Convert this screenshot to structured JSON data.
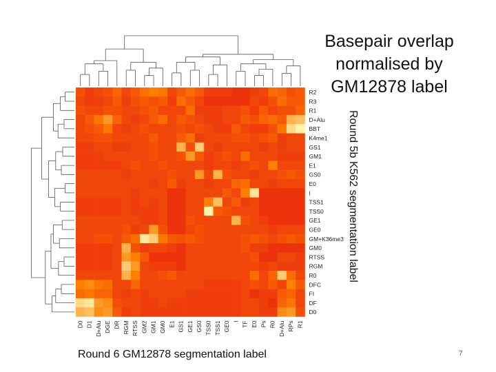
{
  "slide": {
    "title_lines": [
      "Basepair overlap",
      "normalised by",
      "GM12878 label"
    ],
    "page_number": "7"
  },
  "chart_data": {
    "type": "heatmap",
    "title": "Basepair overlap normalised by GM12878 label",
    "xlabel": "Round 6 GM12878 segmentation label",
    "ylabel": "Round 5b K562 segmentation label",
    "columns": [
      "D0",
      "D1",
      "D+Alu",
      "DGE",
      "DR",
      "RGM",
      "RTSS",
      "GM2",
      "GM1",
      "GM0",
      "E1",
      "GS1",
      "GE1",
      "GS0",
      "TSS0",
      "TSS1",
      "GE0",
      "I",
      "TF",
      "E0",
      "Ps",
      "R0",
      "D+Alu",
      "RPs",
      "R1"
    ],
    "rows": [
      "R2",
      "R3",
      "R1",
      "D+Alu",
      "BBT",
      "K4me1",
      "GS1",
      "GM1",
      "E1",
      "GS0",
      "E0",
      "I",
      "TSS1",
      "TSS0",
      "GE1",
      "GE0",
      "GM+K36me3",
      "GM0",
      "RTSS",
      "RGM",
      "R0",
      "DFC",
      "FI",
      "DF",
      "D0"
    ],
    "value_scale": "0 = red (low overlap), 1 = pale yellow (high overlap)",
    "values": [
      [
        0.25,
        0.15,
        0.2,
        0.25,
        0.35,
        0.2,
        0.3,
        0.4,
        0.5,
        0.45,
        0.2,
        0.3,
        0.4,
        0.3,
        0.15,
        0.15,
        0.15,
        0.1,
        0.1,
        0.15,
        0.2,
        0.4,
        0.35,
        0.25,
        0.3
      ],
      [
        0.2,
        0.15,
        0.15,
        0.2,
        0.3,
        0.15,
        0.25,
        0.3,
        0.25,
        0.3,
        0.15,
        0.4,
        0.3,
        0.2,
        0.1,
        0.1,
        0.1,
        0.1,
        0.1,
        0.2,
        0.15,
        0.25,
        0.4,
        0.3,
        0.3
      ],
      [
        0.25,
        0.2,
        0.2,
        0.25,
        0.25,
        0.2,
        0.2,
        0.25,
        0.3,
        0.2,
        0.2,
        0.2,
        0.4,
        0.15,
        0.15,
        0.15,
        0.2,
        0.2,
        0.25,
        0.15,
        0.3,
        0.2,
        0.25,
        0.25,
        0.35
      ],
      [
        0.2,
        0.3,
        0.45,
        0.6,
        0.35,
        0.2,
        0.15,
        0.2,
        0.3,
        0.4,
        0.2,
        0.3,
        0.25,
        0.2,
        0.15,
        0.15,
        0.2,
        0.2,
        0.3,
        0.25,
        0.35,
        0.4,
        0.3,
        0.7,
        0.75
      ],
      [
        0.2,
        0.25,
        0.3,
        0.45,
        0.2,
        0.15,
        0.2,
        0.25,
        0.2,
        0.2,
        0.2,
        0.25,
        0.2,
        0.25,
        0.2,
        0.15,
        0.15,
        0.3,
        0.2,
        0.15,
        0.15,
        0.25,
        0.45,
        0.85,
        0.95
      ],
      [
        0.2,
        0.2,
        0.25,
        0.25,
        0.2,
        0.2,
        0.2,
        0.2,
        0.3,
        0.2,
        0.2,
        0.3,
        0.4,
        0.15,
        0.2,
        0.2,
        0.2,
        0.25,
        0.25,
        0.2,
        0.25,
        0.3,
        0.15,
        0.2,
        0.2
      ],
      [
        0.15,
        0.15,
        0.2,
        0.2,
        0.15,
        0.15,
        0.2,
        0.2,
        0.25,
        0.2,
        0.2,
        0.7,
        0.25,
        0.8,
        0.2,
        0.15,
        0.2,
        0.2,
        0.2,
        0.2,
        0.15,
        0.2,
        0.15,
        0.2,
        0.2
      ],
      [
        0.15,
        0.15,
        0.15,
        0.2,
        0.2,
        0.2,
        0.2,
        0.2,
        0.25,
        0.2,
        0.2,
        0.25,
        0.6,
        0.3,
        0.15,
        0.2,
        0.25,
        0.2,
        0.4,
        0.2,
        0.2,
        0.2,
        0.15,
        0.15,
        0.15
      ],
      [
        0.15,
        0.15,
        0.15,
        0.15,
        0.15,
        0.2,
        0.25,
        0.2,
        0.2,
        0.25,
        0.2,
        0.2,
        0.2,
        0.2,
        0.15,
        0.2,
        0.2,
        0.15,
        0.2,
        0.25,
        0.2,
        0.5,
        0.2,
        0.2,
        0.2
      ],
      [
        0.2,
        0.2,
        0.2,
        0.2,
        0.2,
        0.15,
        0.2,
        0.2,
        0.2,
        0.2,
        0.25,
        0.2,
        0.2,
        0.6,
        0.2,
        0.7,
        0.25,
        0.2,
        0.2,
        0.15,
        0.2,
        0.2,
        0.25,
        0.3,
        0.25
      ],
      [
        0.2,
        0.2,
        0.2,
        0.2,
        0.2,
        0.2,
        0.2,
        0.2,
        0.15,
        0.2,
        0.3,
        0.15,
        0.2,
        0.2,
        0.15,
        0.2,
        0.2,
        0.35,
        0.4,
        0.2,
        0.2,
        0.15,
        0.2,
        0.2,
        0.2
      ],
      [
        0.2,
        0.2,
        0.2,
        0.2,
        0.2,
        0.2,
        0.15,
        0.2,
        0.2,
        0.2,
        0.1,
        0.1,
        0.2,
        0.2,
        0.2,
        0.2,
        0.3,
        0.2,
        0.5,
        0.9,
        0.1,
        0.1,
        0.1,
        0.1,
        0.1
      ],
      [
        0.15,
        0.15,
        0.15,
        0.15,
        0.15,
        0.2,
        0.15,
        0.2,
        0.15,
        0.2,
        0.1,
        0.1,
        0.2,
        0.2,
        0.5,
        0.75,
        0.2,
        0.3,
        0.15,
        0.2,
        0.1,
        0.1,
        0.1,
        0.1,
        0.1
      ],
      [
        0.15,
        0.15,
        0.15,
        0.15,
        0.15,
        0.2,
        0.15,
        0.15,
        0.15,
        0.2,
        0.1,
        0.1,
        0.2,
        0.2,
        0.95,
        0.3,
        0.25,
        0.2,
        0.2,
        0.2,
        0.1,
        0.1,
        0.1,
        0.1,
        0.1
      ],
      [
        0.2,
        0.2,
        0.2,
        0.2,
        0.2,
        0.2,
        0.2,
        0.15,
        0.15,
        0.2,
        0.1,
        0.1,
        0.25,
        0.2,
        0.2,
        0.2,
        0.2,
        0.7,
        0.25,
        0.2,
        0.15,
        0.1,
        0.1,
        0.1,
        0.1
      ],
      [
        0.2,
        0.2,
        0.2,
        0.2,
        0.2,
        0.25,
        0.15,
        0.2,
        0.6,
        0.25,
        0.1,
        0.1,
        0.2,
        0.25,
        0.2,
        0.2,
        0.2,
        0.2,
        0.2,
        0.2,
        0.2,
        0.15,
        0.2,
        0.2,
        0.2
      ],
      [
        0.2,
        0.2,
        0.25,
        0.25,
        0.2,
        0.3,
        0.4,
        0.9,
        0.8,
        0.45,
        0.3,
        0.25,
        0.3,
        0.25,
        0.2,
        0.2,
        0.2,
        0.2,
        0.25,
        0.3,
        0.25,
        0.2,
        0.25,
        0.3,
        0.25
      ],
      [
        0.15,
        0.15,
        0.15,
        0.15,
        0.2,
        0.7,
        0.25,
        0.15,
        0.2,
        0.2,
        0.15,
        0.1,
        0.2,
        0.2,
        0.2,
        0.2,
        0.2,
        0.2,
        0.25,
        0.15,
        0.15,
        0.1,
        0.1,
        0.1,
        0.1
      ],
      [
        0.15,
        0.15,
        0.15,
        0.15,
        0.2,
        0.6,
        0.5,
        0.3,
        0.1,
        0.1,
        0.1,
        0.1,
        0.2,
        0.2,
        0.2,
        0.2,
        0.2,
        0.2,
        0.2,
        0.25,
        0.1,
        0.1,
        0.2,
        0.2,
        0.15
      ],
      [
        0.15,
        0.15,
        0.15,
        0.15,
        0.2,
        0.8,
        0.6,
        0.2,
        0.15,
        0.15,
        0.15,
        0.1,
        0.2,
        0.2,
        0.2,
        0.2,
        0.2,
        0.2,
        0.2,
        0.2,
        0.15,
        0.2,
        0.15,
        0.15,
        0.15
      ],
      [
        0.2,
        0.2,
        0.2,
        0.2,
        0.2,
        0.7,
        0.5,
        0.2,
        0.2,
        0.25,
        0.3,
        0.2,
        0.2,
        0.2,
        0.2,
        0.2,
        0.2,
        0.2,
        0.2,
        0.4,
        0.2,
        0.35,
        0.8,
        0.4,
        0.2
      ],
      [
        0.5,
        0.55,
        0.45,
        0.4,
        0.2,
        0.2,
        0.35,
        0.2,
        0.2,
        0.2,
        0.2,
        0.2,
        0.2,
        0.2,
        0.15,
        0.15,
        0.15,
        0.15,
        0.2,
        0.25,
        0.2,
        0.3,
        0.2,
        0.5,
        0.3
      ],
      [
        0.4,
        0.45,
        0.35,
        0.35,
        0.2,
        0.15,
        0.2,
        0.15,
        0.2,
        0.2,
        0.2,
        0.2,
        0.15,
        0.15,
        0.15,
        0.15,
        0.15,
        0.15,
        0.2,
        0.1,
        0.15,
        0.15,
        0.3,
        0.35,
        0.2
      ],
      [
        0.85,
        0.9,
        0.6,
        0.55,
        0.25,
        0.2,
        0.2,
        0.15,
        0.15,
        0.2,
        0.15,
        0.15,
        0.15,
        0.15,
        0.15,
        0.15,
        0.15,
        0.15,
        0.2,
        0.2,
        0.15,
        0.1,
        0.35,
        0.45,
        0.2
      ],
      [
        0.7,
        0.75,
        0.55,
        0.6,
        0.3,
        0.15,
        0.2,
        0.15,
        0.15,
        0.15,
        0.15,
        0.15,
        0.15,
        0.15,
        0.15,
        0.15,
        0.15,
        0.15,
        0.2,
        0.2,
        0.15,
        0.15,
        0.55,
        0.6,
        0.25
      ]
    ]
  }
}
